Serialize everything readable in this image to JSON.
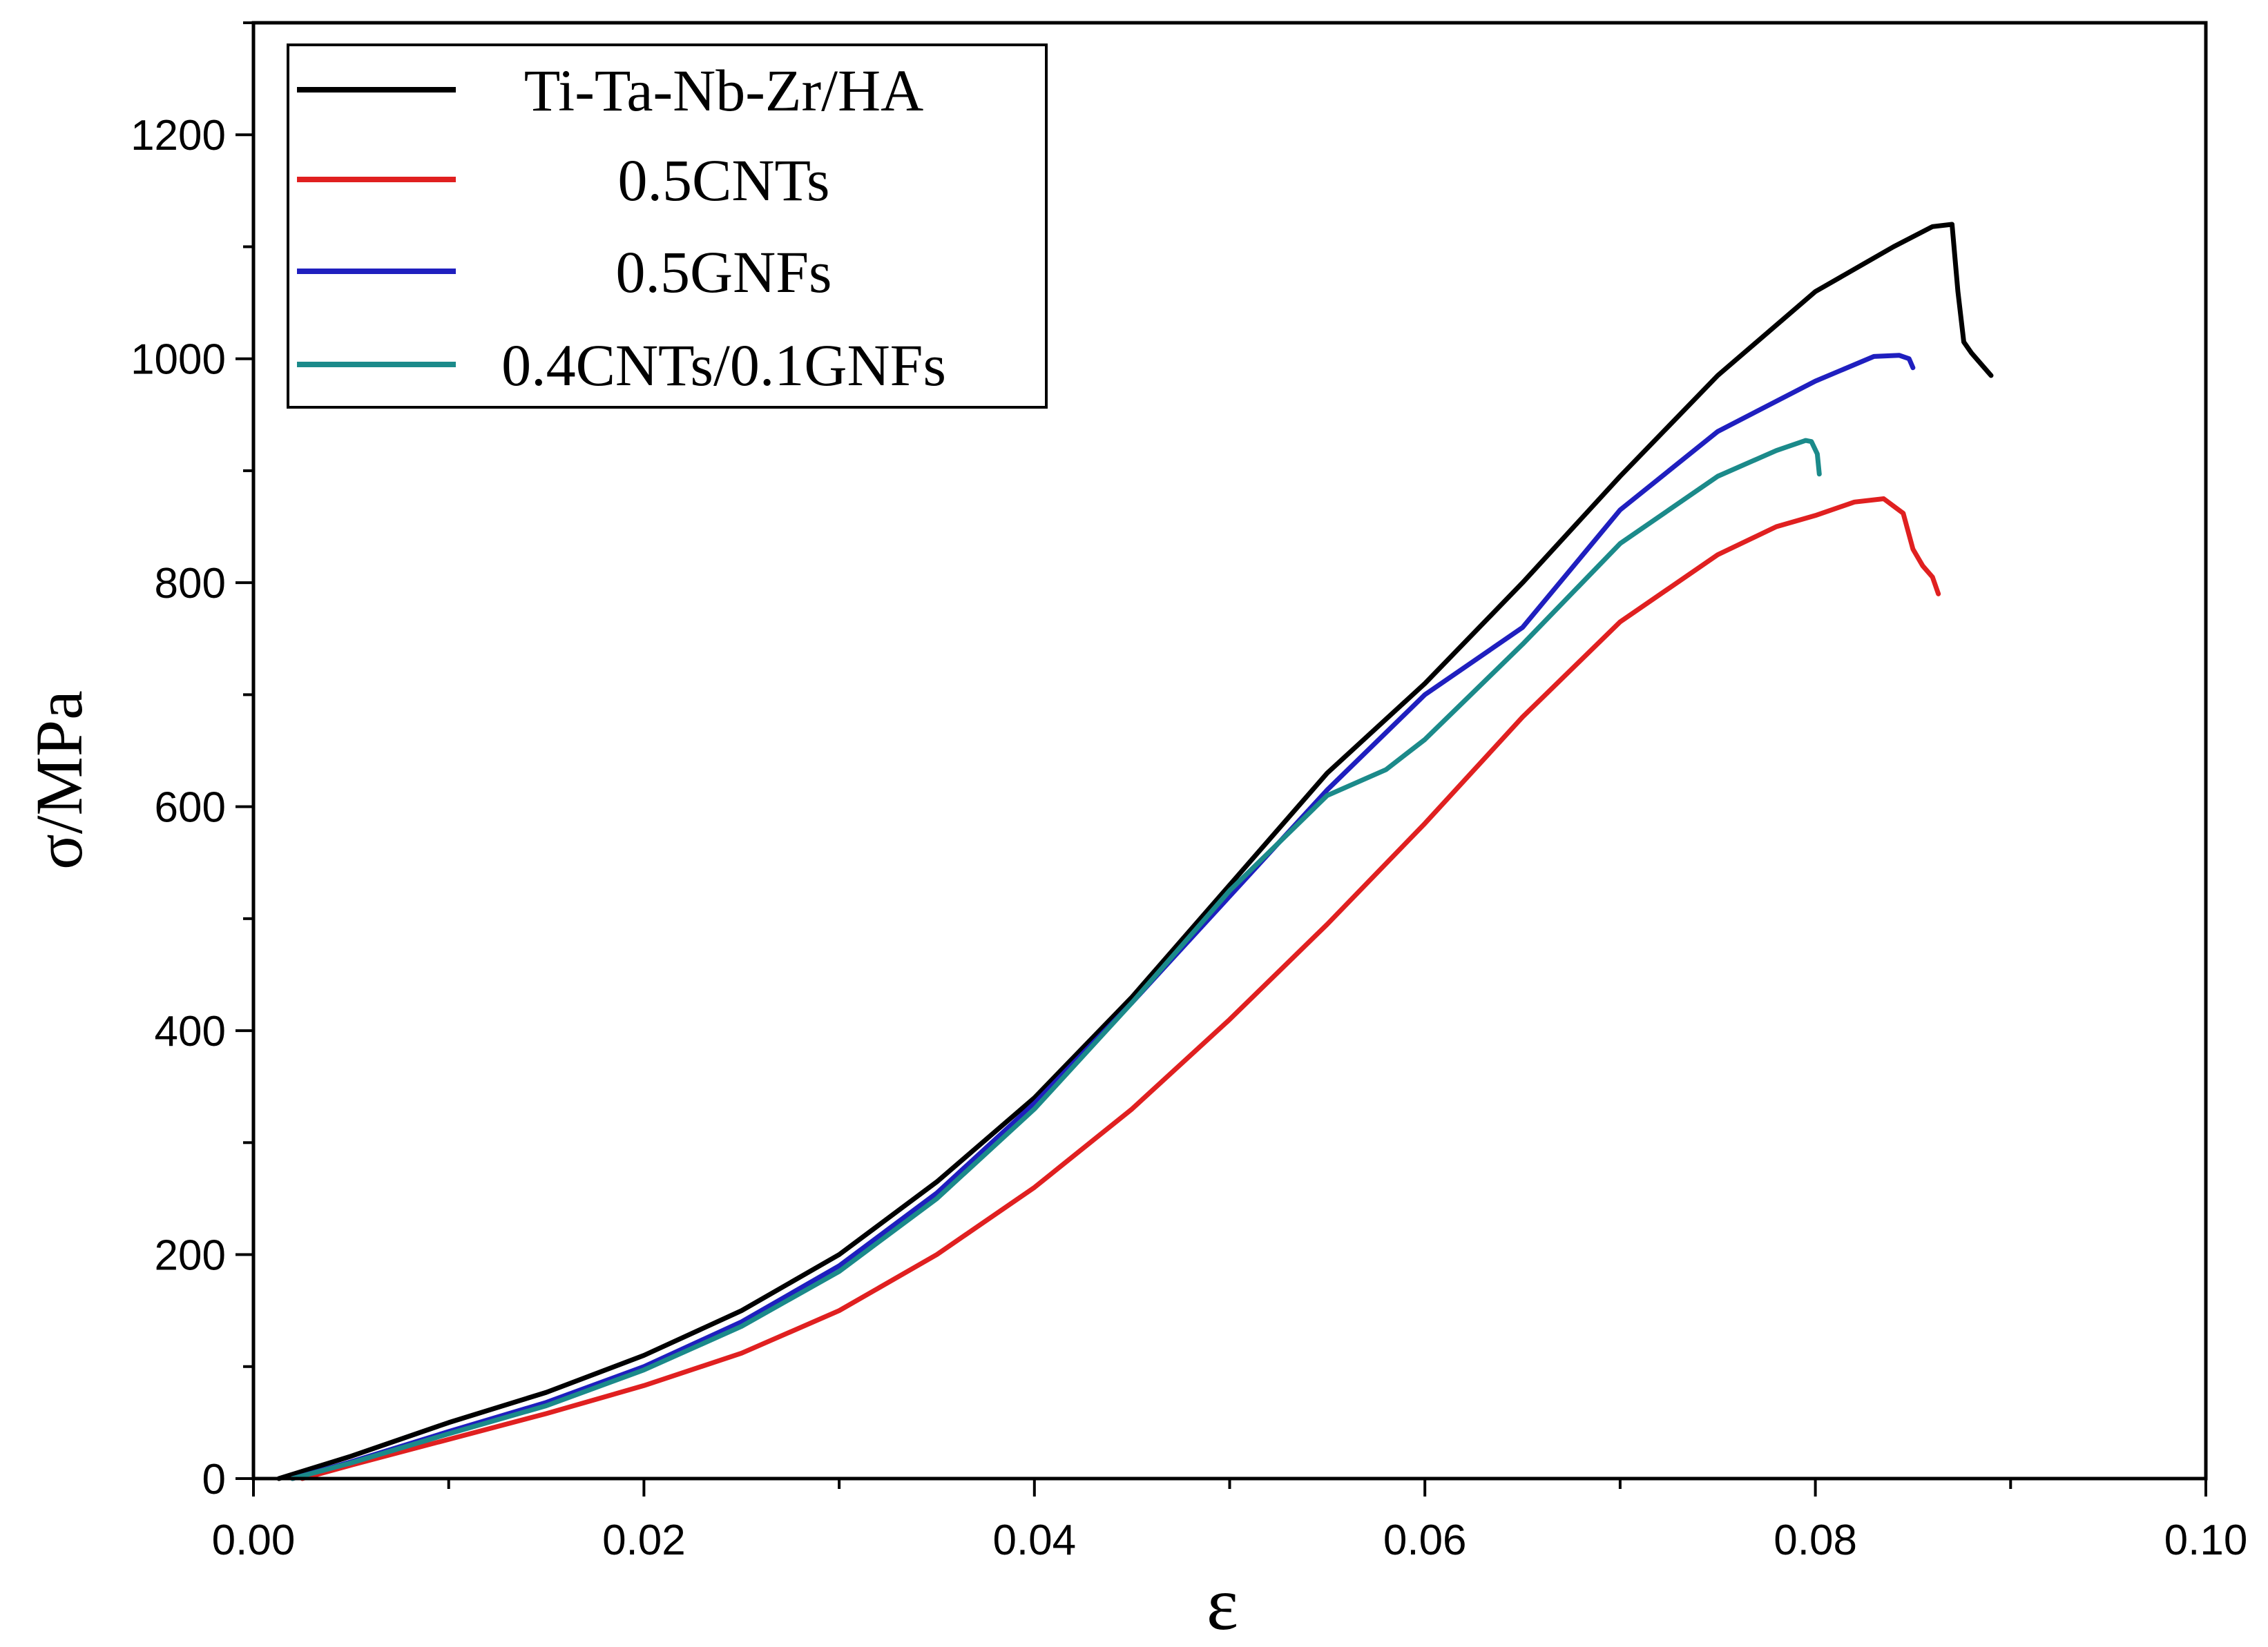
{
  "chart_data": {
    "type": "line",
    "title": "",
    "xlabel": "ε",
    "ylabel": "σ/MPa",
    "xlim": [
      0.0,
      0.1
    ],
    "ylim": [
      0,
      1300
    ],
    "xticks": [
      0.0,
      0.02,
      0.04,
      0.06,
      0.08,
      0.1
    ],
    "xtick_labels": [
      "0.00",
      "0.02",
      "0.04",
      "0.06",
      "0.08",
      "0.10"
    ],
    "yticks": [
      0,
      200,
      400,
      600,
      800,
      1000,
      1200
    ],
    "ytick_labels": [
      "0",
      "200",
      "400",
      "600",
      "800",
      "1000",
      "1200"
    ],
    "grid": false,
    "legend_position": "top-left",
    "series": [
      {
        "name": "Ti-Ta-Nb-Zr/HA",
        "color": "#000000",
        "points": [
          [
            0.0013,
            0
          ],
          [
            0.005,
            20
          ],
          [
            0.01,
            50
          ],
          [
            0.015,
            77
          ],
          [
            0.02,
            110
          ],
          [
            0.025,
            150
          ],
          [
            0.03,
            200
          ],
          [
            0.035,
            265
          ],
          [
            0.04,
            340
          ],
          [
            0.045,
            430
          ],
          [
            0.05,
            530
          ],
          [
            0.055,
            630
          ],
          [
            0.06,
            710
          ],
          [
            0.065,
            800
          ],
          [
            0.07,
            895
          ],
          [
            0.075,
            985
          ],
          [
            0.08,
            1060
          ],
          [
            0.084,
            1100
          ],
          [
            0.086,
            1118
          ],
          [
            0.087,
            1120
          ],
          [
            0.0873,
            1060
          ],
          [
            0.0876,
            1015
          ],
          [
            0.088,
            1005
          ],
          [
            0.0885,
            995
          ],
          [
            0.089,
            985
          ]
        ]
      },
      {
        "name": "0.5CNTs",
        "color": "#e02020",
        "points": [
          [
            0.0025,
            0
          ],
          [
            0.005,
            12
          ],
          [
            0.01,
            35
          ],
          [
            0.015,
            58
          ],
          [
            0.02,
            83
          ],
          [
            0.025,
            112
          ],
          [
            0.03,
            150
          ],
          [
            0.035,
            200
          ],
          [
            0.04,
            260
          ],
          [
            0.045,
            330
          ],
          [
            0.05,
            410
          ],
          [
            0.055,
            495
          ],
          [
            0.06,
            585
          ],
          [
            0.065,
            680
          ],
          [
            0.07,
            765
          ],
          [
            0.075,
            825
          ],
          [
            0.078,
            850
          ],
          [
            0.08,
            860
          ],
          [
            0.082,
            872
          ],
          [
            0.0835,
            875
          ],
          [
            0.0845,
            862
          ],
          [
            0.085,
            830
          ],
          [
            0.0855,
            815
          ],
          [
            0.086,
            805
          ],
          [
            0.0863,
            790
          ]
        ]
      },
      {
        "name": "0.5GNFs",
        "color": "#1f1fbf",
        "points": [
          [
            0.002,
            0
          ],
          [
            0.005,
            15
          ],
          [
            0.01,
            42
          ],
          [
            0.015,
            68
          ],
          [
            0.02,
            100
          ],
          [
            0.025,
            140
          ],
          [
            0.03,
            190
          ],
          [
            0.035,
            255
          ],
          [
            0.04,
            335
          ],
          [
            0.045,
            425
          ],
          [
            0.05,
            520
          ],
          [
            0.055,
            615
          ],
          [
            0.06,
            700
          ],
          [
            0.065,
            760
          ],
          [
            0.07,
            865
          ],
          [
            0.075,
            935
          ],
          [
            0.08,
            980
          ],
          [
            0.083,
            1002
          ],
          [
            0.0843,
            1003
          ],
          [
            0.0848,
            1000
          ],
          [
            0.085,
            992
          ]
        ]
      },
      {
        "name": "0.4CNTs/0.1GNFs",
        "color": "#1b8a8a",
        "points": [
          [
            0.002,
            0
          ],
          [
            0.005,
            14
          ],
          [
            0.01,
            40
          ],
          [
            0.015,
            65
          ],
          [
            0.02,
            97
          ],
          [
            0.025,
            136
          ],
          [
            0.03,
            185
          ],
          [
            0.035,
            250
          ],
          [
            0.04,
            330
          ],
          [
            0.045,
            425
          ],
          [
            0.05,
            525
          ],
          [
            0.055,
            610
          ],
          [
            0.058,
            633
          ],
          [
            0.06,
            660
          ],
          [
            0.065,
            745
          ],
          [
            0.07,
            835
          ],
          [
            0.075,
            895
          ],
          [
            0.078,
            918
          ],
          [
            0.0795,
            927
          ],
          [
            0.0798,
            926
          ],
          [
            0.0801,
            915
          ],
          [
            0.0802,
            897
          ]
        ]
      }
    ]
  }
}
